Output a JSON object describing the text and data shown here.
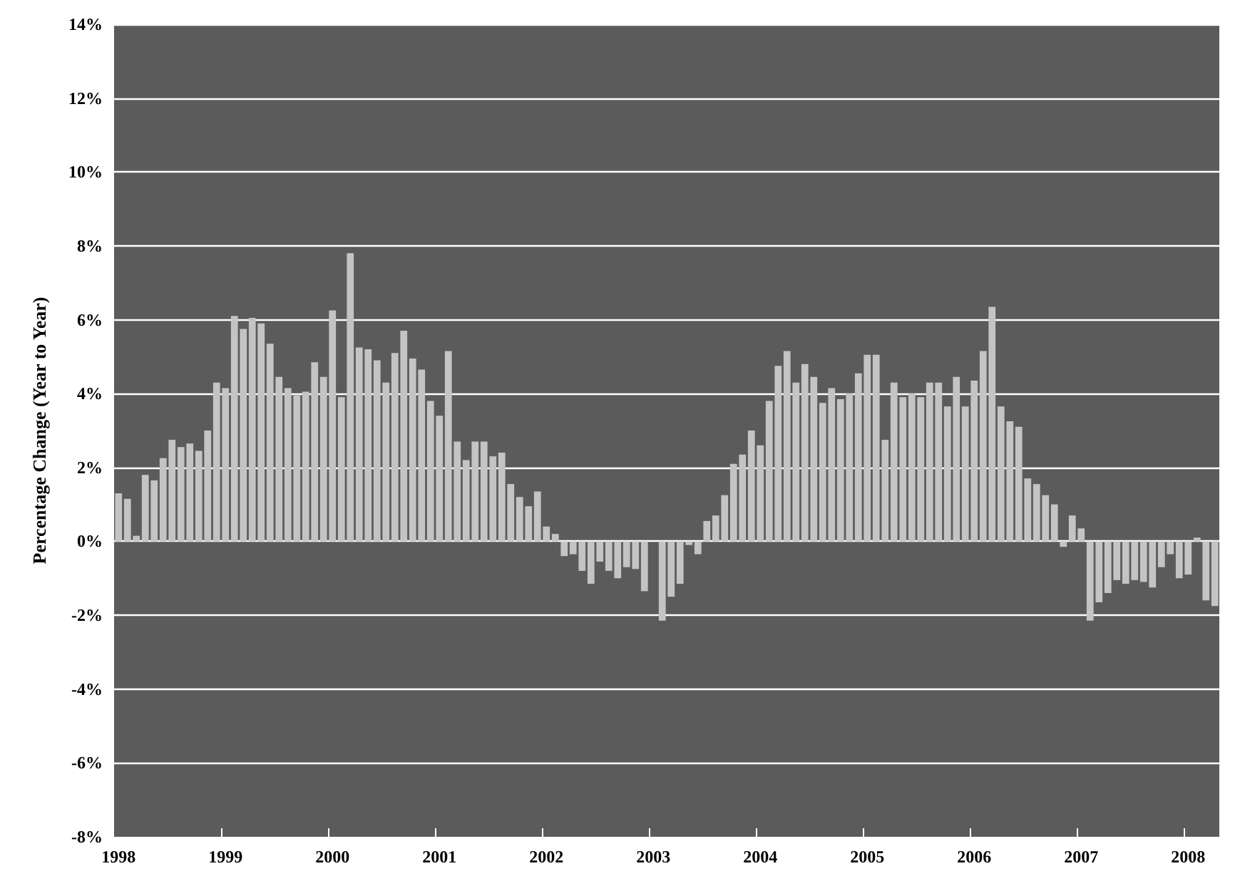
{
  "chart_data": {
    "type": "bar",
    "ylabel": "Percentage Change (Year to Year)",
    "categories": [
      "1998",
      null,
      null,
      null,
      null,
      null,
      null,
      null,
      null,
      null,
      null,
      null,
      "1999",
      null,
      null,
      null,
      null,
      null,
      null,
      null,
      null,
      null,
      null,
      null,
      "2000",
      null,
      null,
      null,
      null,
      null,
      null,
      null,
      null,
      null,
      null,
      null,
      "2001",
      null,
      null,
      null,
      null,
      null,
      null,
      null,
      null,
      null,
      null,
      null,
      "2002",
      null,
      null,
      null,
      null,
      null,
      null,
      null,
      null,
      null,
      null,
      null,
      "2003",
      null,
      null,
      null,
      null,
      null,
      null,
      null,
      null,
      null,
      null,
      null,
      "2004",
      null,
      null,
      null,
      null,
      null,
      null,
      null,
      null,
      null,
      null,
      null,
      "2005",
      null,
      null,
      null,
      null,
      null,
      null,
      null,
      null,
      null,
      null,
      null,
      "2006",
      null,
      null,
      null,
      null,
      null,
      null,
      null,
      null,
      null,
      null,
      null,
      "2007",
      null,
      null,
      null,
      null,
      null,
      null,
      null,
      null,
      null,
      null,
      null,
      "2008",
      null,
      null,
      null
    ],
    "values": [
      1.3,
      1.15,
      0.15,
      1.8,
      1.65,
      2.25,
      2.75,
      2.55,
      2.65,
      2.45,
      3.0,
      4.3,
      4.15,
      6.1,
      5.75,
      6.05,
      5.9,
      5.35,
      4.45,
      4.15,
      3.95,
      4.05,
      4.85,
      4.45,
      6.25,
      3.9,
      7.8,
      5.25,
      5.2,
      4.9,
      4.3,
      5.1,
      5.7,
      4.95,
      4.65,
      3.8,
      3.4,
      5.15,
      2.7,
      2.2,
      2.7,
      2.7,
      2.3,
      2.4,
      1.55,
      1.2,
      0.95,
      1.35,
      0.4,
      0.2,
      -0.4,
      -0.35,
      -0.8,
      -1.15,
      -0.55,
      -0.8,
      -1.0,
      -0.7,
      -0.75,
      -1.35,
      0,
      -2.15,
      -1.5,
      -1.15,
      -0.1,
      -0.35,
      0.55,
      0.7,
      1.25,
      2.1,
      2.35,
      3.0,
      2.6,
      3.8,
      4.75,
      5.15,
      4.3,
      4.8,
      4.45,
      3.75,
      4.15,
      3.85,
      4.0,
      4.55,
      5.05,
      5.05,
      2.75,
      4.3,
      3.9,
      4.0,
      3.9,
      4.3,
      4.3,
      3.65,
      4.45,
      3.65,
      4.35,
      5.15,
      6.35,
      3.65,
      3.25,
      3.1,
      1.7,
      1.55,
      1.25,
      1.0,
      -0.15,
      0.7,
      0.35,
      -2.15,
      -1.65,
      -1.4,
      -1.05,
      -1.15,
      -1.05,
      -1.1,
      -1.25,
      -0.7,
      -0.35,
      -1.0,
      -0.9,
      0.1,
      -1.6,
      -1.75
    ],
    "color": "#c4c4c4",
    "ylim": [
      -8,
      14
    ],
    "yticks": [
      {
        "value": -8,
        "label": "-8%"
      },
      {
        "value": -6,
        "label": "-6%"
      },
      {
        "value": -4,
        "label": "-4%"
      },
      {
        "value": -2,
        "label": "-2%"
      },
      {
        "value": 0,
        "label": "0%"
      },
      {
        "value": 2,
        "label": "2%"
      },
      {
        "value": 4,
        "label": "4%"
      },
      {
        "value": 6,
        "label": "6%"
      },
      {
        "value": 8,
        "label": "8%"
      },
      {
        "value": 10,
        "label": "10%"
      },
      {
        "value": 12,
        "label": "12%"
      },
      {
        "value": 14,
        "label": "14%"
      }
    ],
    "grid": "y"
  }
}
